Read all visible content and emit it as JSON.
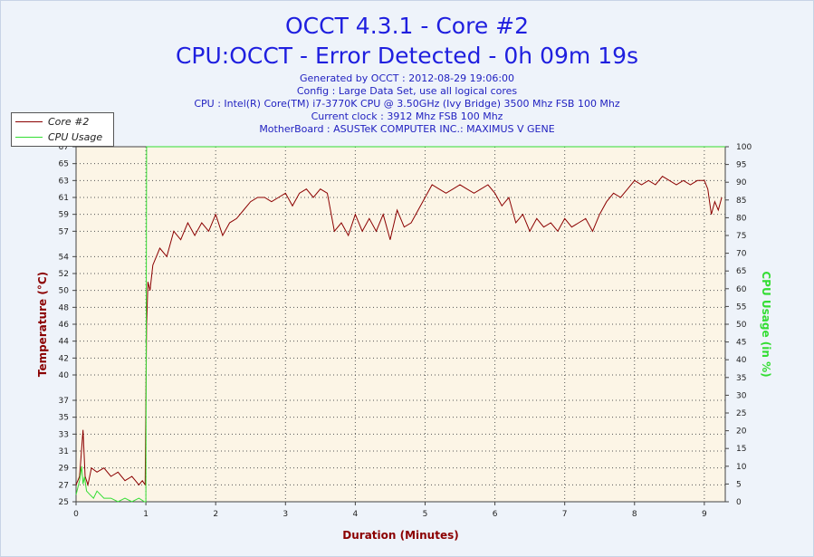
{
  "title": "OCCT 4.3.1 - Core #2",
  "subtitle": "CPU:OCCT - Error Detected - 0h 09m 19s",
  "info_lines": [
    "Generated by OCCT : 2012-08-29 19:06:00",
    "Config : Large Data Set, use all logical cores",
    "CPU : Intel(R) Core(TM) i7-3770K CPU @ 3.50GHz (Ivy Bridge) 3500 Mhz FSB 100 Mhz",
    "Current clock : 3912 Mhz FSB 100 Mhz",
    "MotherBoard : ASUSTeK COMPUTER INC.: MAXIMUS V GENE"
  ],
  "colors": {
    "temperature": "#8b0000",
    "cpu_usage": "#33dd33",
    "plot_bg": "#fcf5e6",
    "title": "#1f1fdf"
  },
  "chart_data": {
    "type": "line",
    "title": "OCCT 4.3.1 - Core #2",
    "xlabel": "Duration (Minutes)",
    "ylabel_left": "Temperature (°C)",
    "ylabel_right": "CPU Usage (in %)",
    "xlim": [
      0,
      9.3
    ],
    "ylim_left": [
      25,
      67
    ],
    "ylim_right": [
      0,
      100
    ],
    "grid": true,
    "legend_position": "top-left",
    "x_ticks": [
      0,
      1,
      2,
      3,
      4,
      5,
      6,
      7,
      8,
      9
    ],
    "y_ticks_left": [
      25,
      27,
      29,
      31,
      33,
      35,
      37,
      40,
      42,
      44,
      46,
      48,
      50,
      52,
      54,
      57,
      59,
      61,
      63,
      65,
      67
    ],
    "y_ticks_right": [
      0,
      5,
      10,
      15,
      20,
      25,
      30,
      35,
      40,
      45,
      50,
      55,
      60,
      65,
      70,
      75,
      80,
      85,
      90,
      95,
      100
    ],
    "series": [
      {
        "name": "Core #2",
        "axis": "left",
        "x": [
          0,
          0.05,
          0.1,
          0.13,
          0.17,
          0.22,
          0.3,
          0.4,
          0.5,
          0.6,
          0.7,
          0.8,
          0.9,
          0.95,
          0.99,
          1.01,
          1.03,
          1.06,
          1.1,
          1.15,
          1.2,
          1.3,
          1.4,
          1.5,
          1.6,
          1.7,
          1.8,
          1.9,
          2.0,
          2.1,
          2.2,
          2.3,
          2.4,
          2.5,
          2.6,
          2.7,
          2.8,
          2.9,
          3.0,
          3.1,
          3.2,
          3.3,
          3.4,
          3.5,
          3.6,
          3.7,
          3.8,
          3.9,
          4.0,
          4.1,
          4.2,
          4.3,
          4.4,
          4.5,
          4.6,
          4.7,
          4.8,
          4.9,
          5.0,
          5.1,
          5.2,
          5.3,
          5.4,
          5.5,
          5.6,
          5.7,
          5.8,
          5.9,
          6.0,
          6.1,
          6.2,
          6.3,
          6.4,
          6.5,
          6.6,
          6.7,
          6.8,
          6.9,
          7.0,
          7.1,
          7.2,
          7.3,
          7.4,
          7.5,
          7.6,
          7.7,
          7.8,
          7.9,
          8.0,
          8.1,
          8.2,
          8.3,
          8.4,
          8.5,
          8.6,
          8.7,
          8.8,
          8.9,
          9.0,
          9.05,
          9.1,
          9.15,
          9.2,
          9.25
        ],
        "values": [
          27,
          28,
          33.5,
          28,
          27,
          29,
          28.5,
          29,
          28,
          28.5,
          27.5,
          28,
          27,
          27.5,
          27,
          46,
          51,
          50,
          53,
          54,
          55,
          54,
          57,
          56,
          58,
          56.5,
          58,
          57,
          59,
          56.5,
          58,
          58.5,
          59.5,
          60.5,
          61,
          61,
          60.5,
          61,
          61.5,
          60,
          61.5,
          62,
          61,
          62,
          61.5,
          57,
          58,
          56.5,
          59,
          57,
          58.5,
          57,
          59,
          56,
          59.5,
          57.5,
          58,
          59.5,
          61,
          62.5,
          62,
          61.5,
          62,
          62.5,
          62,
          61.5,
          62,
          62.5,
          61.5,
          60,
          61,
          58,
          59,
          57,
          58.5,
          57.5,
          58,
          57,
          58.5,
          57.5,
          58,
          58.5,
          57,
          59,
          60.5,
          61.5,
          61,
          62,
          63,
          62.5,
          63,
          62.5,
          63.5,
          63,
          62.5,
          63,
          62.5,
          63,
          63,
          62,
          59,
          60.5,
          59.5,
          61
        ]
      },
      {
        "name": "CPU Usage",
        "axis": "right",
        "x": [
          0,
          0.05,
          0.08,
          0.1,
          0.12,
          0.15,
          0.2,
          0.25,
          0.3,
          0.4,
          0.5,
          0.6,
          0.7,
          0.8,
          0.9,
          0.98,
          1.0,
          1.01,
          9.3
        ],
        "values": [
          2,
          6,
          10,
          5,
          7,
          3,
          2,
          1,
          3,
          1,
          1,
          0,
          1,
          0,
          1,
          0,
          0,
          100,
          100
        ]
      }
    ]
  }
}
